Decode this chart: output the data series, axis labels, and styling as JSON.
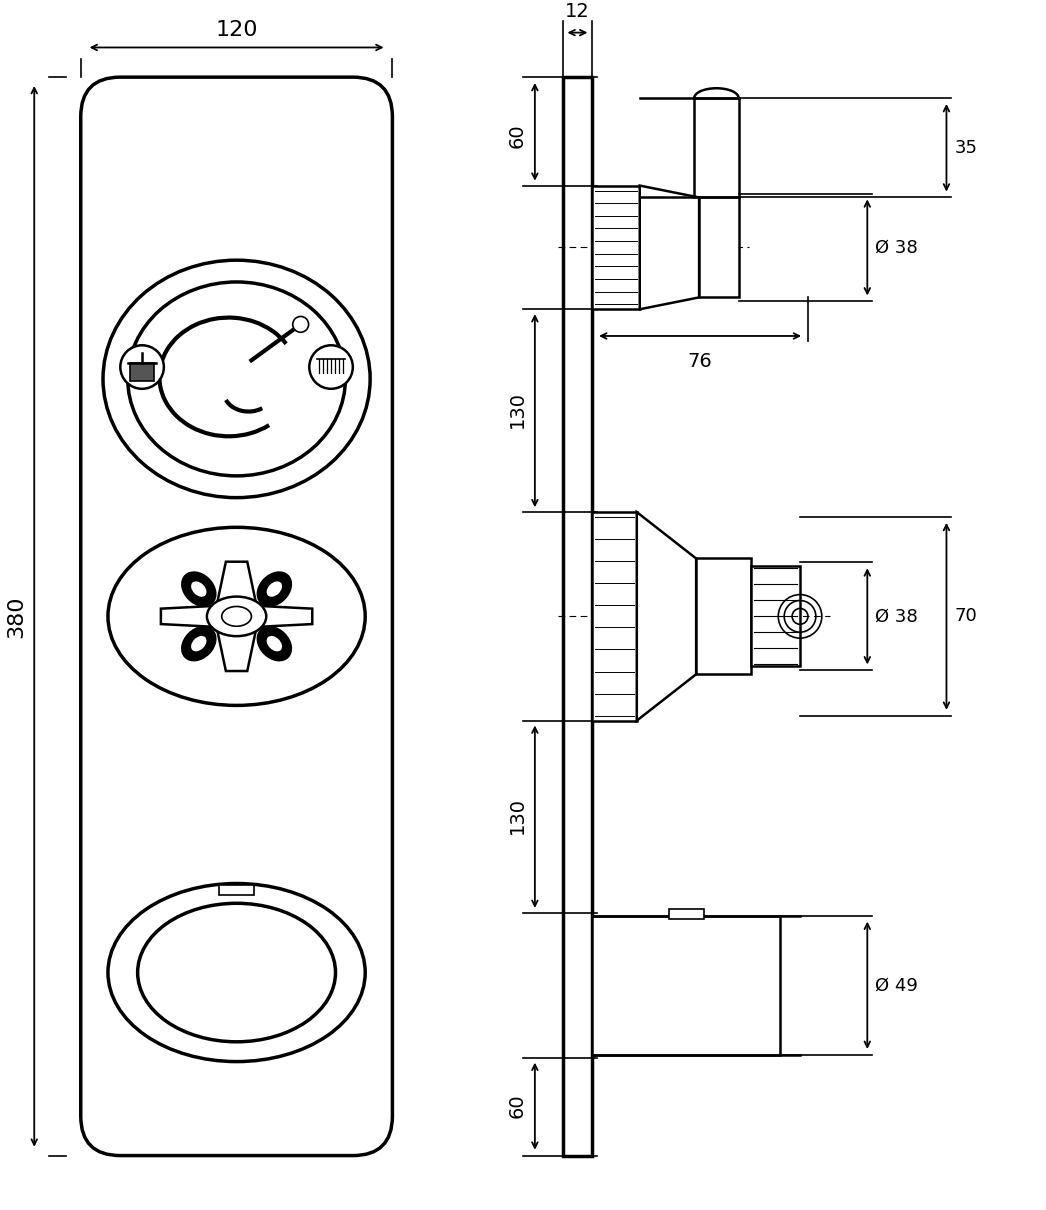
{
  "bg_color": "#ffffff",
  "line_color": "#000000",
  "fig_width": 10.46,
  "fig_height": 12.1,
  "dpi": 100,
  "dims": {
    "top_width": "120",
    "side_width": "12",
    "d60_top": "60",
    "d38_top": "38",
    "d35": "35",
    "d76": "76",
    "d130_mid": "130",
    "d38_mid": "38",
    "d70": "70",
    "d130_low": "130",
    "d49": "49",
    "d60_bot": "60",
    "h_total": "380"
  }
}
